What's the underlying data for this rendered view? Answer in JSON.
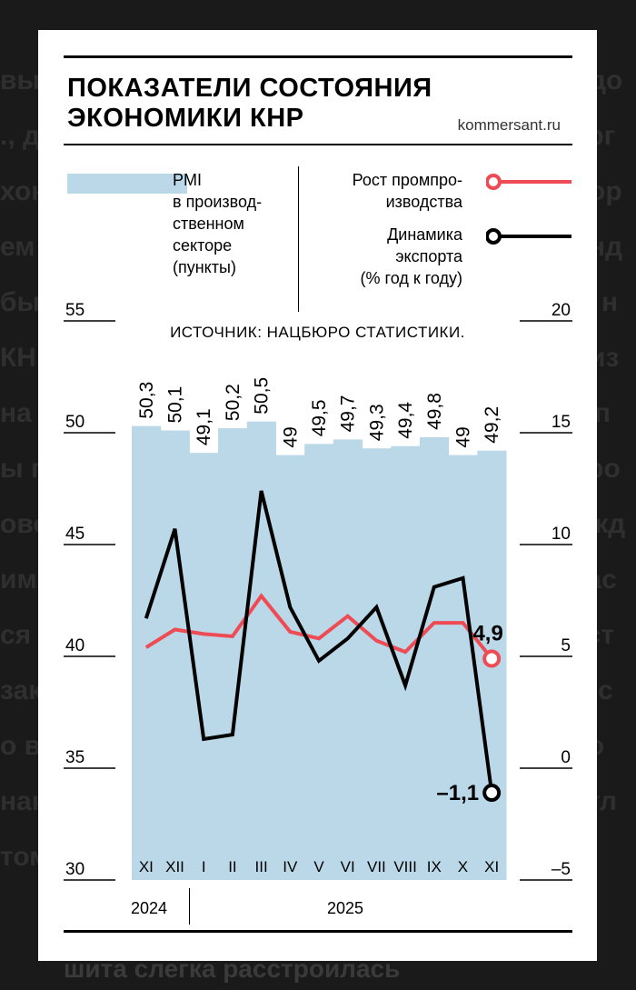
{
  "background_text": [
    "вы",
    "., д",
    "хон",
    "ем",
    "бы",
    "КН",
    "на п",
    "ы п",
    "ово",
    "име",
    "ся в",
    "зак",
    "о в",
    "нак",
    "том",
    "до",
    "орг",
    "ор",
    "нд",
    "ы н",
    "из",
    "я п",
    "про",
    "жд",
    "час",
    "аст",
    "гос",
    "и го",
    "отл"
  ],
  "bottom_text": "шита слегка расстроилась",
  "header": {
    "title_line1": "ПОКАЗАТЕЛИ СОСТОЯНИЯ",
    "title_line2": "ЭКОНОМИКИ КНР",
    "site": "kommersant.ru"
  },
  "legend": {
    "pmi": "PMI\nв производ-\nственном\nсекторе\n(пункты)",
    "production": "Рост промпро-\nизводства",
    "exports": "Динамика\nэкспорта\n(% год к году)"
  },
  "colors": {
    "pmi_fill": "#bad8e8",
    "production_line": "#ef4b55",
    "exports_line": "#000000"
  },
  "chart_data": {
    "type": "bar+line",
    "source": "ИСТОЧНИК: НАЦБЮРО СТАТИСТИКИ.",
    "categories": [
      "XI",
      "XII",
      "I",
      "II",
      "III",
      "IV",
      "V",
      "VI",
      "VII",
      "VIII",
      "IX",
      "X",
      "XI"
    ],
    "years": [
      {
        "label": "2024",
        "span": [
          "XI",
          "XII"
        ]
      },
      {
        "label": "2025",
        "span": [
          "I",
          "XI"
        ]
      }
    ],
    "left_axis": {
      "label": "PMI (пункты)",
      "range": [
        30,
        55
      ],
      "ticks": [
        55,
        50,
        45,
        40,
        35,
        30
      ]
    },
    "right_axis": {
      "label": "% год к году",
      "range": [
        -5,
        20
      ],
      "ticks": [
        "20",
        "15",
        "10",
        "5",
        "0",
        "–5"
      ]
    },
    "series": [
      {
        "name": "PMI в производственном секторе",
        "type": "area",
        "axis": "left",
        "values": [
          50.3,
          50.1,
          49.1,
          50.2,
          50.5,
          49,
          49.5,
          49.7,
          49.3,
          49.4,
          49.8,
          49,
          49.2
        ],
        "labels": [
          "50,3",
          "50,1",
          "49,1",
          "50,2",
          "50,5",
          "49",
          "49,5",
          "49,7",
          "49,3",
          "49,4",
          "49,8",
          "49",
          "49,2"
        ]
      },
      {
        "name": "Рост промпроизводства",
        "type": "line",
        "axis": "right",
        "values": [
          5.4,
          6.2,
          6.0,
          5.9,
          7.7,
          6.1,
          5.8,
          6.8,
          5.7,
          5.2,
          6.5,
          null,
          4.9
        ],
        "last_label": "4,9"
      },
      {
        "name": "Динамика экспорта",
        "type": "line",
        "axis": "right",
        "values": [
          6.7,
          10.7,
          1.3,
          1.5,
          12.4,
          7.2,
          4.8,
          5.8,
          7.2,
          3.7,
          8.1,
          null,
          -1.1
        ],
        "last_label": "–1,1"
      }
    ]
  }
}
